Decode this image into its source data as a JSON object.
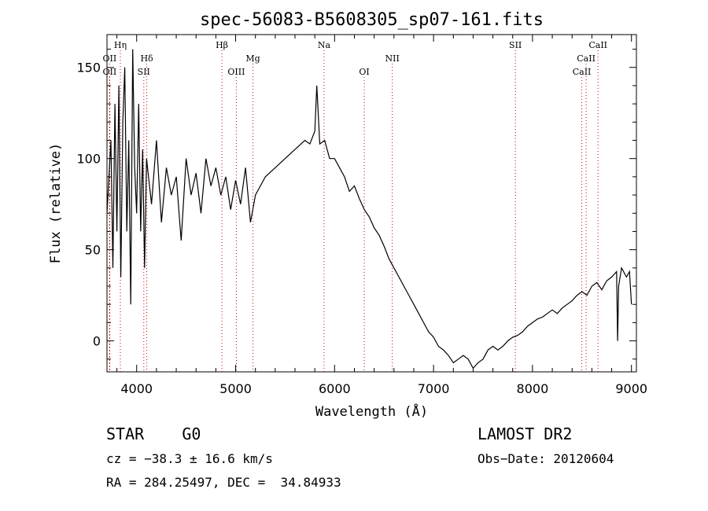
{
  "chart_data": {
    "type": "line",
    "title": "spec-56083-B5608305_sp07-161.fits",
    "xlabel": "Wavelength (Å)",
    "ylabel": "Flux (relative)",
    "xlim": [
      3700,
      9050
    ],
    "ylim": [
      -17,
      168
    ],
    "xticks": [
      4000,
      5000,
      6000,
      7000,
      8000,
      9000
    ],
    "yticks": [
      0,
      50,
      100,
      150
    ],
    "grid": false,
    "line_color": "#000000",
    "marker_color": "#cc0000",
    "series": [
      {
        "x": [
          3700,
          3740,
          3760,
          3780,
          3800,
          3820,
          3840,
          3860,
          3880,
          3900,
          3920,
          3940,
          3960,
          3980,
          4000,
          4020,
          4040,
          4060,
          4080,
          4100,
          4150,
          4200,
          4250,
          4300,
          4350,
          4400,
          4450,
          4500,
          4550,
          4600,
          4650,
          4700,
          4750,
          4800,
          4850,
          4900,
          4950,
          5000,
          5050,
          5100,
          5150,
          5200,
          5250,
          5300,
          5400,
          5500,
          5600,
          5700,
          5750,
          5800,
          5820,
          5850,
          5900,
          5950,
          6000,
          6050,
          6100,
          6150,
          6200,
          6250,
          6300,
          6350,
          6400,
          6450,
          6500,
          6550,
          6600,
          6650,
          6700,
          6750,
          6800,
          6850,
          6900,
          6950,
          7000,
          7050,
          7100,
          7150,
          7200,
          7250,
          7300,
          7350,
          7400,
          7450,
          7500,
          7550,
          7600,
          7650,
          7700,
          7750,
          7800,
          7850,
          7900,
          7950,
          8000,
          8050,
          8100,
          8150,
          8200,
          8250,
          8300,
          8350,
          8400,
          8450,
          8500,
          8550,
          8600,
          8650,
          8700,
          8750,
          8800,
          8850,
          8860,
          8870,
          8900,
          8950,
          8980,
          9000
        ],
        "y": [
          70,
          110,
          40,
          130,
          60,
          140,
          35,
          120,
          150,
          60,
          110,
          20,
          160,
          95,
          70,
          130,
          60,
          105,
          40,
          100,
          75,
          110,
          65,
          95,
          80,
          90,
          55,
          100,
          80,
          92,
          70,
          100,
          85,
          95,
          80,
          90,
          72,
          88,
          75,
          95,
          65,
          80,
          85,
          90,
          95,
          100,
          105,
          110,
          108,
          115,
          140,
          108,
          110,
          100,
          100,
          95,
          90,
          82,
          85,
          78,
          72,
          68,
          62,
          58,
          52,
          45,
          40,
          35,
          30,
          25,
          20,
          15,
          10,
          5,
          2,
          -3,
          -5,
          -8,
          -12,
          -10,
          -8,
          -10,
          -15,
          -12,
          -10,
          -5,
          -3,
          -5,
          -3,
          0,
          2,
          3,
          5,
          8,
          10,
          12,
          13,
          15,
          17,
          15,
          18,
          20,
          22,
          25,
          27,
          25,
          30,
          32,
          28,
          33,
          35,
          38,
          0,
          30,
          40,
          35,
          38,
          20
        ]
      }
    ],
    "lines": [
      {
        "label": "Hη",
        "x": 3835,
        "tier": 1
      },
      {
        "label": "OII",
        "x": 3727,
        "tier": 2
      },
      {
        "label": "OII",
        "x": 3727,
        "tier": 3
      },
      {
        "label": "Hδ",
        "x": 4102,
        "tier": 2
      },
      {
        "label": "SII",
        "x": 4072,
        "tier": 3
      },
      {
        "label": "Hβ",
        "x": 4861,
        "tier": 1
      },
      {
        "label": "OIII",
        "x": 5007,
        "tier": 3
      },
      {
        "label": "Mg",
        "x": 5175,
        "tier": 2
      },
      {
        "label": "Na",
        "x": 5894,
        "tier": 1
      },
      {
        "label": "OI",
        "x": 6300,
        "tier": 3
      },
      {
        "label": "NII",
        "x": 6583,
        "tier": 2
      },
      {
        "label": "SII",
        "x": 7827,
        "tier": 1
      },
      {
        "label": "CaII",
        "x": 8662,
        "tier": 1
      },
      {
        "label": "CaII",
        "x": 8542,
        "tier": 2
      },
      {
        "label": "CaII",
        "x": 8498,
        "tier": 3
      }
    ]
  },
  "info": {
    "class": "STAR    G0",
    "survey": "LAMOST DR2",
    "cz": "cz = −38.3 ± 16.6 km/s",
    "obs_date": "Obs−Date: 20120604",
    "coords": "RA = 284.25497, DEC =  34.84933"
  }
}
